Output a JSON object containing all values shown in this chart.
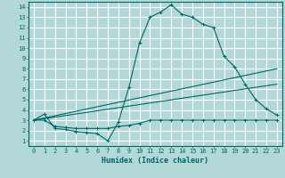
{
  "bg_color": "#b2d8d8",
  "line_color": "#006666",
  "grid_color": "#ffffff",
  "xlabel": "Humidex (Indice chaleur)",
  "xlim": [
    -0.5,
    23.5
  ],
  "ylim": [
    0.5,
    14.5
  ],
  "xticks": [
    0,
    1,
    2,
    3,
    4,
    5,
    6,
    7,
    8,
    9,
    10,
    11,
    12,
    13,
    14,
    15,
    16,
    17,
    18,
    19,
    20,
    21,
    22,
    23
  ],
  "yticks": [
    1,
    2,
    3,
    4,
    5,
    6,
    7,
    8,
    9,
    10,
    11,
    12,
    13,
    14
  ],
  "curve1_x": [
    0,
    1,
    2,
    3,
    4,
    5,
    6,
    7,
    8,
    9,
    10,
    11,
    12,
    13,
    14,
    15,
    16,
    17,
    18,
    19,
    20,
    21,
    22,
    23
  ],
  "curve1_y": [
    3.0,
    3.6,
    2.2,
    2.1,
    1.9,
    1.8,
    1.7,
    1.0,
    2.8,
    6.2,
    10.5,
    13.0,
    13.5,
    14.2,
    13.3,
    13.0,
    12.3,
    12.0,
    9.2,
    8.2,
    6.5,
    5.0,
    4.1,
    3.5
  ],
  "curve2_x": [
    0,
    1,
    2,
    3,
    4,
    5,
    6,
    7,
    8,
    9,
    10,
    11,
    12,
    13,
    14,
    15,
    16,
    17,
    18,
    19,
    20,
    21,
    22,
    23
  ],
  "curve2_y": [
    3.0,
    3.0,
    2.4,
    2.3,
    2.2,
    2.2,
    2.2,
    2.2,
    2.4,
    2.5,
    2.7,
    3.0,
    3.0,
    3.0,
    3.0,
    3.0,
    3.0,
    3.0,
    3.0,
    3.0,
    3.0,
    3.0,
    3.0,
    3.0
  ],
  "marker": "+"
}
